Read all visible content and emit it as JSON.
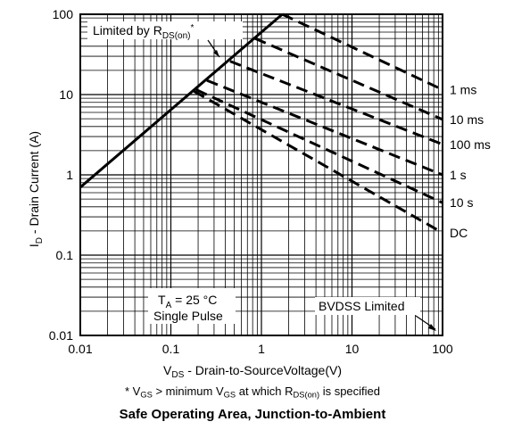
{
  "chart_data": {
    "type": "line",
    "title": "Safe Operating Area, Junction-to-Ambient",
    "xscale": "log",
    "yscale": "log",
    "xlim": [
      0.01,
      100
    ],
    "ylim": [
      0.01,
      100
    ],
    "grid": true,
    "xlabel": {
      "main": "V",
      "sub": "DS",
      "rest": " - Drain-to-SourceVoltage(V)"
    },
    "ylabel": {
      "main": "I",
      "sub": "D",
      "rest": " - Drain Current (A)"
    },
    "x_ticks": [
      0.01,
      0.1,
      1,
      10,
      100
    ],
    "x_tick_labels": [
      "0.01",
      "0.1",
      "1",
      "10",
      "100"
    ],
    "y_ticks": [
      0.01,
      0.1,
      1,
      10,
      100
    ],
    "y_tick_labels": [
      "0.01",
      "0.1",
      "1",
      "10",
      "100"
    ],
    "rds_limit_line": {
      "x": [
        0.01,
        1.7
      ],
      "y": [
        0.7,
        100
      ]
    },
    "series": [
      {
        "name": "1 ms",
        "x": [
          1.7,
          100
        ],
        "y": [
          100,
          11.5
        ]
      },
      {
        "name": "10 ms",
        "x": [
          0.85,
          100
        ],
        "y": [
          50,
          4.9
        ]
      },
      {
        "name": "100 ms",
        "x": [
          0.45,
          100
        ],
        "y": [
          26,
          2.4
        ]
      },
      {
        "name": "1 s",
        "x": [
          0.25,
          100
        ],
        "y": [
          15,
          1.0
        ]
      },
      {
        "name": "10 s",
        "x": [
          0.19,
          100
        ],
        "y": [
          11.5,
          0.45
        ]
      },
      {
        "name": "DC",
        "x": [
          0.18,
          100
        ],
        "y": [
          11,
          0.19
        ]
      }
    ],
    "annotations": {
      "rds": {
        "prefix": "Limited by R",
        "sub": "DS(on)",
        "suffix": "*"
      },
      "conditions": {
        "line1_prefix": "T",
        "line1_sub": "A",
        "line1_suffix": " = 25 °C",
        "line2": "Single Pulse"
      },
      "bvdss": "BVDSS Limited"
    }
  },
  "footnote": {
    "prefix": "* V",
    "sub1": "GS",
    "mid1": " > minimum V",
    "sub2": "GS",
    "mid2": " at which R",
    "sub3": "DS(on)",
    "suffix": " is specified"
  },
  "caption": "Safe Operating Area, Junction-to-Ambient"
}
